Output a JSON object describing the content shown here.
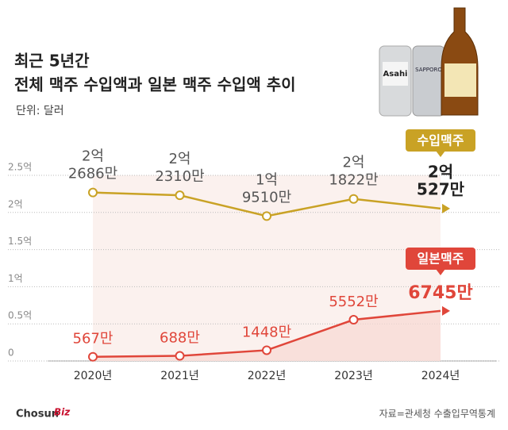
{
  "chart_data": {
    "type": "line",
    "title": [
      "최근 5년간",
      "전체 맥주 수입액과 일본 맥주 수입액 추이"
    ],
    "subtitle": "단위: 달러",
    "source": "자료=관세청 수출입무역통계",
    "logo": [
      "Chosun",
      "Biz"
    ],
    "categories": [
      "2020년",
      "2021년",
      "2022년",
      "2023년",
      "2024년"
    ],
    "series": [
      {
        "name": "수입맥주",
        "color": "#c9a225",
        "values": [
          2.2686,
          2.231,
          1.951,
          2.1822,
          2.0527
        ],
        "value_labels": [
          [
            "2억",
            "2686만"
          ],
          [
            "2억",
            "2310만"
          ],
          [
            "1억",
            "9510만"
          ],
          [
            "2억",
            "1822만"
          ],
          [
            "2억",
            "527만"
          ]
        ]
      },
      {
        "name": "일본맥주",
        "color": "#e0463a",
        "values": [
          0.0567,
          0.0688,
          0.1448,
          0.5552,
          0.6745
        ],
        "value_labels": [
          [
            "567만"
          ],
          [
            "688만"
          ],
          [
            "1448만"
          ],
          [
            "5552만"
          ],
          [
            "6745만"
          ]
        ]
      }
    ],
    "ylim": [
      0,
      2.5
    ],
    "yticks": [
      0,
      {
        "value": 0.5,
        "label": "0.5억"
      },
      {
        "value": 1,
        "label": "1억"
      },
      {
        "value": 1.5,
        "label": "1.5억"
      },
      {
        "value": 2,
        "label": "2억"
      },
      {
        "value": 2.5,
        "label": "2.5억"
      }
    ],
    "grid": true
  }
}
